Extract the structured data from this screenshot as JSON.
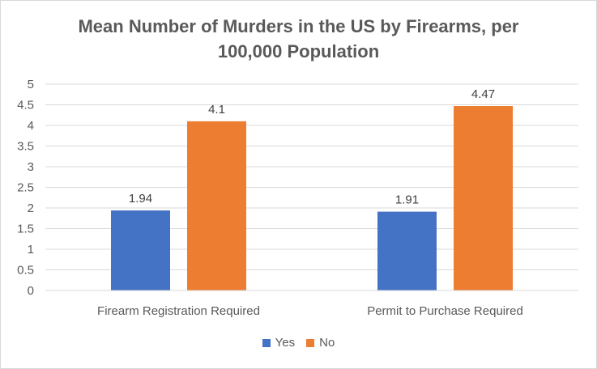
{
  "chart_data": {
    "type": "bar",
    "title": "Mean Number  of Murders in the US by Firearms, per 100,000 Population",
    "categories": [
      "Firearm Registration Required",
      "Permit to Purchase Required"
    ],
    "series": [
      {
        "name": "Yes",
        "values": [
          1.94,
          1.91
        ],
        "color": "#4472c4"
      },
      {
        "name": "No",
        "values": [
          4.1,
          4.47
        ],
        "color": "#ed7d31"
      }
    ],
    "data_labels": [
      [
        "1.94",
        "1.91"
      ],
      [
        "4.1",
        "4.47"
      ]
    ],
    "yticks": [
      "0",
      "0.5",
      "1",
      "1.5",
      "2",
      "2.5",
      "3",
      "3.5",
      "4",
      "4.5",
      "5"
    ],
    "ylim": [
      0,
      5
    ],
    "xlabel": "",
    "ylabel": "",
    "grid": true,
    "legend_position": "bottom"
  }
}
